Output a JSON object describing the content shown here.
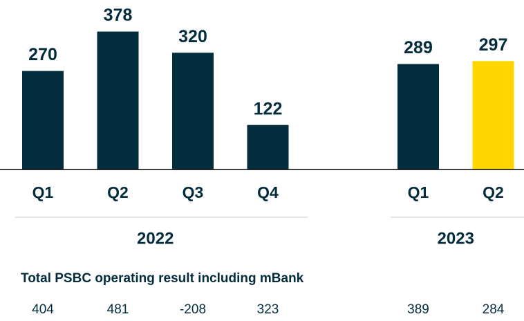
{
  "chart_data": {
    "type": "bar",
    "ylim": [
      0,
      400
    ],
    "baseline_color": "#000000",
    "groups": [
      {
        "name": "2022",
        "categories": [
          "Q1",
          "Q2",
          "Q3",
          "Q4"
        ],
        "values": [
          270,
          378,
          320,
          122
        ],
        "colors": [
          "#032d3c",
          "#032d3c",
          "#032d3c",
          "#032d3c"
        ],
        "totals": [
          404,
          481,
          -208,
          323
        ]
      },
      {
        "name": "2023",
        "categories": [
          "Q1",
          "Q2"
        ],
        "values": [
          289,
          297
        ],
        "colors": [
          "#032d3c",
          "#ffd600"
        ],
        "totals": [
          389,
          284
        ]
      }
    ],
    "totals_title": "Total PSBC operating result including mBank"
  }
}
